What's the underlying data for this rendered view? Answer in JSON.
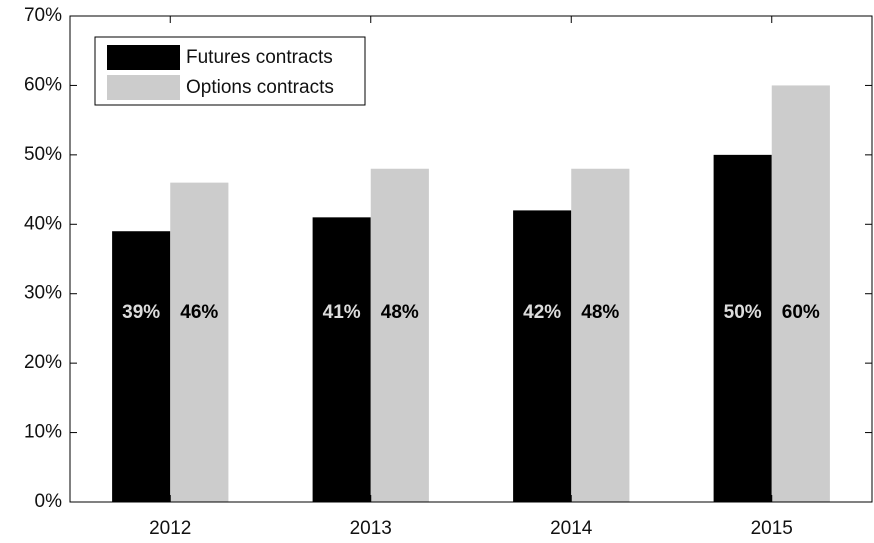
{
  "chart_data": {
    "type": "bar",
    "categories": [
      "2012",
      "2013",
      "2014",
      "2015"
    ],
    "series": [
      {
        "name": "Futures contracts",
        "color": "#000000",
        "label_color": "#dcdcdc",
        "values": [
          39,
          41,
          42,
          50
        ],
        "value_labels": [
          "39%",
          "41%",
          "42%",
          "50%"
        ]
      },
      {
        "name": "Options contracts",
        "color": "#cccccc",
        "label_color": "#000000",
        "values": [
          46,
          48,
          48,
          60
        ],
        "value_labels": [
          "46%",
          "48%",
          "48%",
          "60%"
        ]
      }
    ],
    "ylim": [
      0,
      70
    ],
    "yticks": [
      {
        "value": 0,
        "label": "0%"
      },
      {
        "value": 10,
        "label": "10%"
      },
      {
        "value": 20,
        "label": "20%"
      },
      {
        "value": 30,
        "label": "30%"
      },
      {
        "value": 40,
        "label": "40%"
      },
      {
        "value": 50,
        "label": "50%"
      },
      {
        "value": 60,
        "label": "60%"
      },
      {
        "value": 70,
        "label": "70%"
      }
    ],
    "legend": "upper left",
    "grid": false
  }
}
